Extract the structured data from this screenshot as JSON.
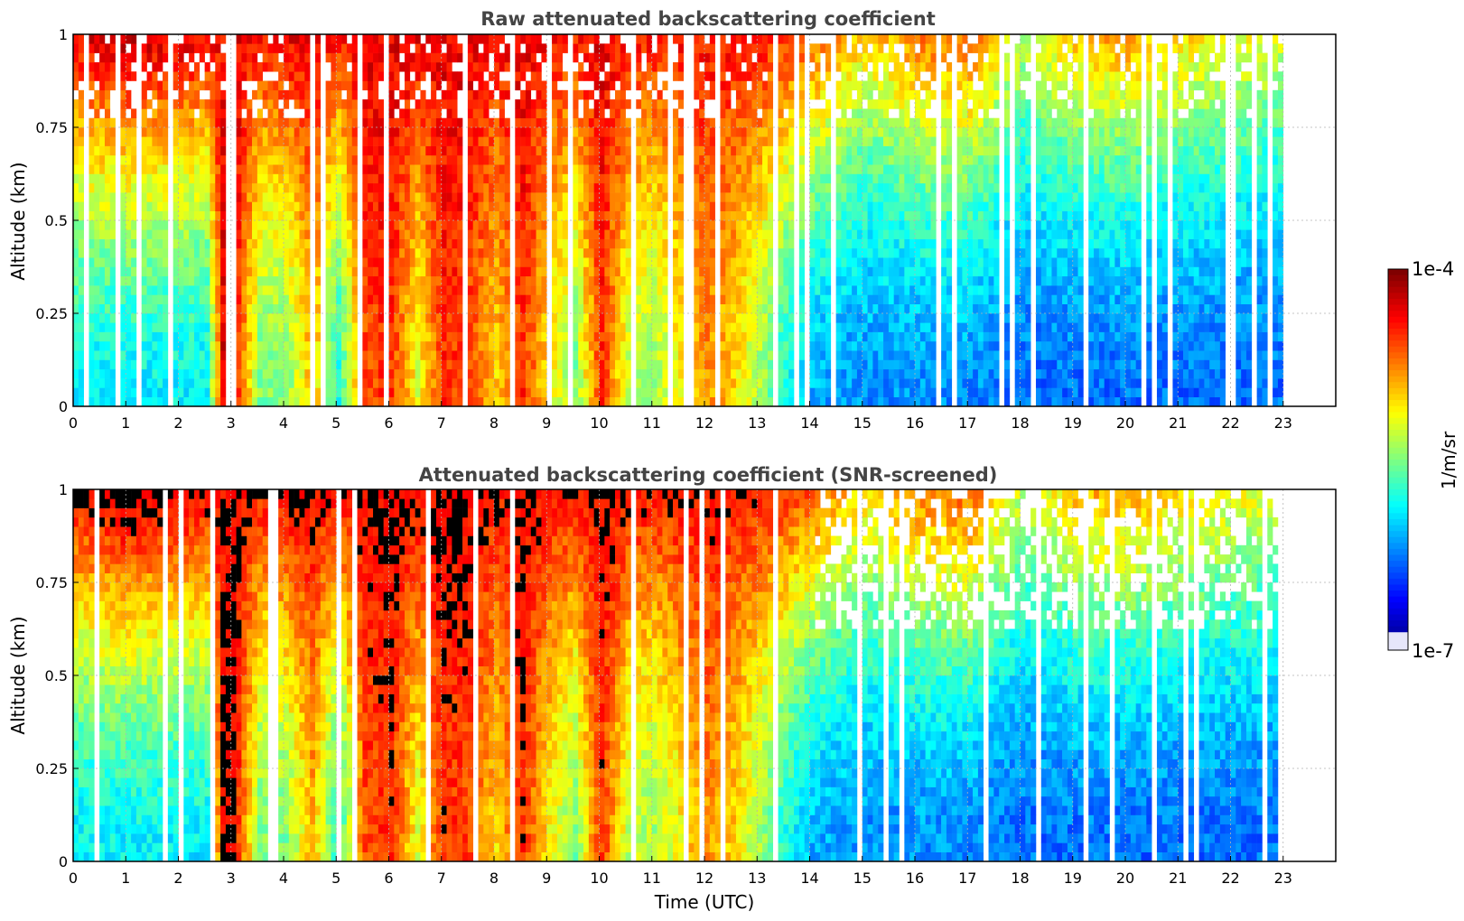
{
  "chart_data": [
    {
      "type": "heatmap",
      "title": "Raw attenuated backscattering coefficient",
      "xlabel": "",
      "ylabel": "Altitude (km)",
      "xlim": [
        0,
        24
      ],
      "ylim": [
        0,
        1
      ],
      "xticks": [
        "0",
        "1",
        "2",
        "3",
        "4",
        "5",
        "6",
        "7",
        "8",
        "9",
        "10",
        "11",
        "12",
        "13",
        "14",
        "15",
        "16",
        "17",
        "18",
        "19",
        "20",
        "21",
        "22",
        "23"
      ],
      "yticks": [
        "0",
        "0.25",
        "0.5",
        "0.75",
        "1"
      ],
      "ytick_values": [
        0,
        0.25,
        0.5,
        0.75,
        1
      ],
      "grid": true,
      "data_end_time": 23,
      "screened": false,
      "profile_log10": [
        {
          "t": 0.0,
          "base": -5.9,
          "top": -4.3
        },
        {
          "t": 0.5,
          "base": -5.9,
          "top": -4.2
        },
        {
          "t": 1.0,
          "base": -5.9,
          "top": -4.1
        },
        {
          "t": 1.5,
          "base": -5.9,
          "top": -4.2
        },
        {
          "t": 2.0,
          "base": -5.9,
          "top": -4.2
        },
        {
          "t": 2.5,
          "base": -5.9,
          "top": -4.3
        },
        {
          "t": 2.8,
          "base": -4.3,
          "top": -4.4
        },
        {
          "t": 3.0,
          "base": -4.3,
          "top": -4.3
        },
        {
          "t": 3.5,
          "base": -5.5,
          "top": -4.4
        },
        {
          "t": 4.0,
          "base": -5.5,
          "top": -4.3
        },
        {
          "t": 4.5,
          "base": -4.9,
          "top": -4.3
        },
        {
          "t": 5.0,
          "base": -5.8,
          "top": -4.4
        },
        {
          "t": 5.5,
          "base": -4.6,
          "top": -4.3
        },
        {
          "t": 6.0,
          "base": -4.5,
          "top": -4.3
        },
        {
          "t": 6.5,
          "base": -5.2,
          "top": -4.3
        },
        {
          "t": 7.0,
          "base": -4.5,
          "top": -4.3
        },
        {
          "t": 7.5,
          "base": -4.6,
          "top": -4.3
        },
        {
          "t": 8.0,
          "base": -5.0,
          "top": -4.4
        },
        {
          "t": 8.5,
          "base": -4.5,
          "top": -4.3
        },
        {
          "t": 9.0,
          "base": -5.1,
          "top": -4.4
        },
        {
          "t": 9.5,
          "base": -5.5,
          "top": -4.4
        },
        {
          "t": 10.0,
          "base": -4.5,
          "top": -4.3
        },
        {
          "t": 10.5,
          "base": -5.3,
          "top": -4.4
        },
        {
          "t": 11.0,
          "base": -5.4,
          "top": -4.4
        },
        {
          "t": 11.5,
          "base": -5.1,
          "top": -4.4
        },
        {
          "t": 12.0,
          "base": -4.8,
          "top": -4.4
        },
        {
          "t": 12.5,
          "base": -5.0,
          "top": -4.4
        },
        {
          "t": 13.0,
          "base": -5.4,
          "top": -4.4
        },
        {
          "t": 13.5,
          "base": -5.8,
          "top": -4.5
        },
        {
          "t": 14.0,
          "base": -6.1,
          "top": -4.6
        },
        {
          "t": 15.0,
          "base": -6.2,
          "top": -5.0
        },
        {
          "t": 16.0,
          "base": -6.2,
          "top": -4.7
        },
        {
          "t": 17.0,
          "base": -6.2,
          "top": -4.6
        },
        {
          "t": 18.0,
          "base": -6.3,
          "top": -5.3
        },
        {
          "t": 19.0,
          "base": -6.3,
          "top": -4.9
        },
        {
          "t": 20.0,
          "base": -6.3,
          "top": -4.8
        },
        {
          "t": 21.0,
          "base": -6.3,
          "top": -5.0
        },
        {
          "t": 22.0,
          "base": -6.3,
          "top": -5.1
        },
        {
          "t": 23.0,
          "base": -6.3,
          "top": -5.2
        }
      ]
    },
    {
      "type": "heatmap",
      "title": "Attenuated backscattering coefficient (SNR-screened)",
      "xlabel": "Time (UTC)",
      "ylabel": "Altitude (km)",
      "xlim": [
        0,
        24
      ],
      "ylim": [
        0,
        1
      ],
      "xticks": [
        "0",
        "1",
        "2",
        "3",
        "4",
        "5",
        "6",
        "7",
        "8",
        "9",
        "10",
        "11",
        "12",
        "13",
        "14",
        "15",
        "16",
        "17",
        "18",
        "19",
        "20",
        "21",
        "22",
        "23"
      ],
      "yticks": [
        "0",
        "0.25",
        "0.5",
        "0.75",
        "1"
      ],
      "ytick_values": [
        0,
        0.25,
        0.5,
        0.75,
        1
      ],
      "grid": true,
      "data_end_time": 23,
      "screened": true,
      "screened_color": "#000000"
    }
  ],
  "colorbar": {
    "label": "1/m/sr",
    "max_label": "1e-4",
    "min_label": "1e-7",
    "log10_min": -7,
    "log10_max": -4,
    "colormap": "jet",
    "low_end_color": "#e6e6fa"
  }
}
